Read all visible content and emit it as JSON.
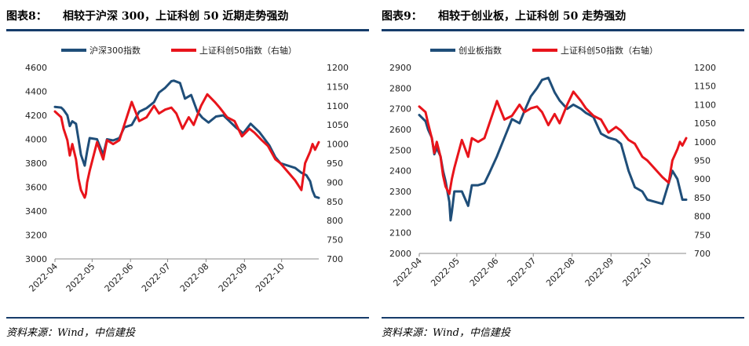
{
  "charts": [
    {
      "figure_label": "图表8：",
      "title": "相较于沪深 300，上证科创 50 近期走势强劲",
      "source": "资料来源：Wind，中信建投"
    },
    {
      "figure_label": "图表9：",
      "title": "相较于创业板，上证科创 50 走势强劲",
      "source": "资料来源：Wind，中信建投"
    }
  ],
  "colors": {
    "left_series": "#1f4e79",
    "right_series": "#e8141b",
    "rule": "#163c6a"
  },
  "chart_data": [
    {
      "type": "line",
      "x_ticks": [
        "2022-04",
        "2022-05",
        "2022-06",
        "2022-07",
        "2022-08",
        "2022-09",
        "2022-10"
      ],
      "x_range": [
        "2022-04-01",
        "2022-10-31"
      ],
      "ylim_left": [
        3000,
        4600
      ],
      "yticks_left": [
        3000,
        3200,
        3400,
        3600,
        3800,
        4000,
        4200,
        4400,
        4600
      ],
      "ylim_right": [
        700,
        1200
      ],
      "yticks_right": [
        700,
        750,
        800,
        850,
        900,
        950,
        1000,
        1050,
        1100,
        1150,
        1200
      ],
      "grid": false,
      "legend_position": "top",
      "series": [
        {
          "name": "沪深300指数",
          "axis": "left",
          "x": [
            "2022-04-01",
            "2022-04-06",
            "2022-04-08",
            "2022-04-11",
            "2022-04-13",
            "2022-04-15",
            "2022-04-18",
            "2022-04-20",
            "2022-04-22",
            "2022-04-25",
            "2022-04-27",
            "2022-04-29",
            "2022-05-05",
            "2022-05-10",
            "2022-05-13",
            "2022-05-18",
            "2022-05-23",
            "2022-05-27",
            "2022-06-02",
            "2022-06-08",
            "2022-06-14",
            "2022-06-20",
            "2022-06-24",
            "2022-06-29",
            "2022-07-04",
            "2022-07-06",
            "2022-07-11",
            "2022-07-15",
            "2022-07-20",
            "2022-07-25",
            "2022-07-29",
            "2022-08-03",
            "2022-08-09",
            "2022-08-15",
            "2022-08-19",
            "2022-08-25",
            "2022-08-31",
            "2022-09-06",
            "2022-09-13",
            "2022-09-16",
            "2022-09-21",
            "2022-09-26",
            "2022-09-30",
            "2022-10-12",
            "2022-10-17",
            "2022-10-21",
            "2022-10-24",
            "2022-10-26",
            "2022-10-28",
            "2022-10-31"
          ],
          "values": [
            4270,
            4265,
            4245,
            4200,
            4110,
            4150,
            4130,
            4000,
            3870,
            3780,
            3900,
            4010,
            4000,
            3870,
            4000,
            3990,
            4010,
            4100,
            4120,
            4230,
            4260,
            4310,
            4390,
            4430,
            4485,
            4490,
            4470,
            4340,
            4370,
            4230,
            4180,
            4140,
            4190,
            4200,
            4160,
            4100,
            4050,
            4130,
            4060,
            4020,
            3950,
            3850,
            3800,
            3760,
            3720,
            3700,
            3650,
            3570,
            3520,
            3510
          ]
        },
        {
          "name": "上证科创50指数（右轴）",
          "axis": "right",
          "x": [
            "2022-04-01",
            "2022-04-06",
            "2022-04-08",
            "2022-04-11",
            "2022-04-13",
            "2022-04-15",
            "2022-04-18",
            "2022-04-20",
            "2022-04-22",
            "2022-04-25",
            "2022-04-26",
            "2022-04-27",
            "2022-04-29",
            "2022-05-05",
            "2022-05-10",
            "2022-05-13",
            "2022-05-18",
            "2022-05-23",
            "2022-05-27",
            "2022-06-02",
            "2022-06-08",
            "2022-06-14",
            "2022-06-20",
            "2022-06-24",
            "2022-06-29",
            "2022-07-04",
            "2022-07-08",
            "2022-07-13",
            "2022-07-18",
            "2022-07-22",
            "2022-07-28",
            "2022-08-02",
            "2022-08-08",
            "2022-08-12",
            "2022-08-18",
            "2022-08-24",
            "2022-08-30",
            "2022-09-05",
            "2022-09-09",
            "2022-09-15",
            "2022-09-20",
            "2022-09-26",
            "2022-09-30",
            "2022-10-12",
            "2022-10-17",
            "2022-10-20",
            "2022-10-24",
            "2022-10-26",
            "2022-10-28",
            "2022-10-31"
          ],
          "values": [
            1085,
            1070,
            1040,
            1010,
            970,
            1000,
            960,
            910,
            880,
            860,
            870,
            900,
            930,
            1005,
            960,
            1010,
            1000,
            1010,
            1050,
            1110,
            1060,
            1070,
            1100,
            1080,
            1090,
            1095,
            1080,
            1040,
            1070,
            1050,
            1100,
            1130,
            1110,
            1095,
            1070,
            1060,
            1020,
            1040,
            1030,
            1010,
            995,
            960,
            950,
            905,
            880,
            950,
            980,
            1000,
            985,
            1005
          ]
        }
      ]
    },
    {
      "type": "line",
      "x_ticks": [
        "2022-04",
        "2022-05",
        "2022-06",
        "2022-07",
        "2022-08",
        "2022-09",
        "2022-10"
      ],
      "x_range": [
        "2022-04-01",
        "2022-10-31"
      ],
      "ylim_left": [
        2000,
        2900
      ],
      "yticks_left": [
        2000,
        2100,
        2200,
        2300,
        2400,
        2500,
        2600,
        2700,
        2800,
        2900
      ],
      "ylim_right": [
        700,
        1200
      ],
      "yticks_right": [
        700,
        750,
        800,
        850,
        900,
        950,
        1000,
        1050,
        1100,
        1150,
        1200
      ],
      "grid": false,
      "legend_position": "top",
      "series": [
        {
          "name": "创业板指数",
          "axis": "left",
          "x": [
            "2022-04-01",
            "2022-04-06",
            "2022-04-08",
            "2022-04-11",
            "2022-04-13",
            "2022-04-15",
            "2022-04-18",
            "2022-04-20",
            "2022-04-22",
            "2022-04-25",
            "2022-04-26",
            "2022-04-27",
            "2022-04-29",
            "2022-05-05",
            "2022-05-10",
            "2022-05-13",
            "2022-05-18",
            "2022-05-23",
            "2022-05-27",
            "2022-06-02",
            "2022-06-08",
            "2022-06-14",
            "2022-06-20",
            "2022-06-24",
            "2022-06-29",
            "2022-07-04",
            "2022-07-08",
            "2022-07-13",
            "2022-07-18",
            "2022-07-22",
            "2022-07-28",
            "2022-08-02",
            "2022-08-08",
            "2022-08-12",
            "2022-08-18",
            "2022-08-24",
            "2022-08-30",
            "2022-09-05",
            "2022-09-09",
            "2022-09-15",
            "2022-09-20",
            "2022-09-26",
            "2022-09-30",
            "2022-10-12",
            "2022-10-17",
            "2022-10-20",
            "2022-10-24",
            "2022-10-26",
            "2022-10-28",
            "2022-10-31"
          ],
          "values": [
            2670,
            2640,
            2600,
            2560,
            2480,
            2510,
            2470,
            2400,
            2350,
            2250,
            2160,
            2200,
            2300,
            2300,
            2230,
            2330,
            2330,
            2340,
            2390,
            2470,
            2560,
            2650,
            2630,
            2690,
            2760,
            2800,
            2840,
            2850,
            2780,
            2740,
            2700,
            2720,
            2700,
            2680,
            2660,
            2580,
            2560,
            2550,
            2530,
            2400,
            2320,
            2300,
            2260,
            2240,
            2340,
            2400,
            2360,
            2310,
            2260,
            2260
          ]
        },
        {
          "name": "上证科创50指数（右轴）",
          "axis": "right",
          "x": [
            "2022-04-01",
            "2022-04-06",
            "2022-04-08",
            "2022-04-11",
            "2022-04-13",
            "2022-04-15",
            "2022-04-18",
            "2022-04-20",
            "2022-04-22",
            "2022-04-25",
            "2022-04-26",
            "2022-04-27",
            "2022-04-29",
            "2022-05-05",
            "2022-05-10",
            "2022-05-13",
            "2022-05-18",
            "2022-05-23",
            "2022-05-27",
            "2022-06-02",
            "2022-06-08",
            "2022-06-14",
            "2022-06-20",
            "2022-06-24",
            "2022-06-29",
            "2022-07-04",
            "2022-07-08",
            "2022-07-13",
            "2022-07-18",
            "2022-07-22",
            "2022-07-28",
            "2022-08-02",
            "2022-08-08",
            "2022-08-12",
            "2022-08-18",
            "2022-08-24",
            "2022-08-30",
            "2022-09-05",
            "2022-09-09",
            "2022-09-15",
            "2022-09-20",
            "2022-09-26",
            "2022-09-30",
            "2022-10-12",
            "2022-10-17",
            "2022-10-20",
            "2022-10-24",
            "2022-10-26",
            "2022-10-28",
            "2022-10-31"
          ],
          "values": [
            1095,
            1080,
            1050,
            1010,
            970,
            1000,
            960,
            910,
            880,
            860,
            880,
            900,
            930,
            1005,
            960,
            1010,
            1000,
            1010,
            1050,
            1110,
            1060,
            1070,
            1100,
            1080,
            1090,
            1095,
            1080,
            1045,
            1075,
            1050,
            1100,
            1135,
            1110,
            1090,
            1070,
            1060,
            1025,
            1040,
            1030,
            1005,
            995,
            960,
            950,
            905,
            890,
            950,
            980,
            1000,
            990,
            1010
          ]
        }
      ]
    }
  ]
}
